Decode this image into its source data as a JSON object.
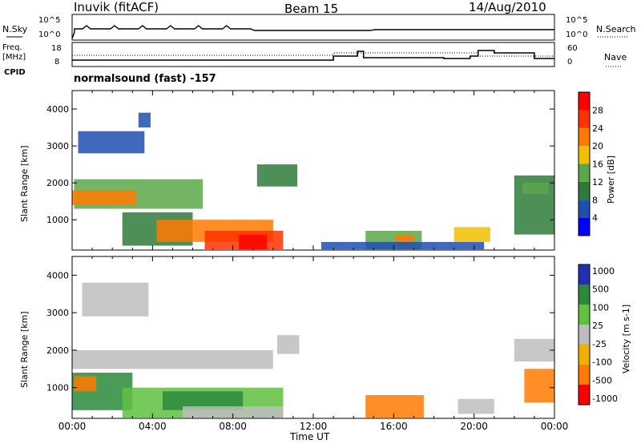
{
  "header": {
    "station": "Inuvik  (fitACF)",
    "beam": "Beam 15",
    "date": "14/Aug/2010"
  },
  "left_labels": {
    "nsky": "N.Sky",
    "freq": "Freq.",
    "freq_unit": "[MHz]",
    "cpid": "CPID",
    "nsky_top": "10^5",
    "nsky_bottom": "10^0",
    "freq_top": "18",
    "freq_bottom": "8"
  },
  "right_labels": {
    "nsearch": "N.Search",
    "nave": "Nave",
    "nsearch_top": "10^5",
    "nsearch_bottom": "10^0",
    "nave_top": "60",
    "nave_bottom": "0"
  },
  "cpid_text": "normalsound (fast) -157",
  "colors": {
    "power_scale": [
      "#0000ff",
      "#1f4fb0",
      "#2f7a3a",
      "#5aa84a",
      "#f0c000",
      "#ff7a00",
      "#ff3300",
      "#ff0000"
    ],
    "velocity_scale": [
      "#2030b0",
      "#2a8a3a",
      "#60c040",
      "#bdbdbd",
      "#f0b000",
      "#ff7a00",
      "#ff0000"
    ]
  },
  "chart_data": [
    {
      "type": "heatmap",
      "name": "power",
      "ylabel": "Slant Range [km]",
      "ylim": [
        180,
        4500
      ],
      "yticks": [
        1000,
        2000,
        3000,
        4000
      ],
      "xticks": [
        "00:00",
        "04:00",
        "08:00",
        "12:00",
        "16:00",
        "20:00",
        "00:00"
      ],
      "colorbar": {
        "label": "Power [dB]",
        "ticks": [
          "4",
          "8",
          "12",
          "16",
          "20",
          "24",
          "28"
        ],
        "range": [
          0,
          30
        ]
      },
      "regions": [
        {
          "t0": 0.1,
          "t1": 6.5,
          "r0": 1300,
          "r1": 2100,
          "level": 12
        },
        {
          "t0": 0.0,
          "t1": 3.2,
          "r0": 1400,
          "r1": 1800,
          "level": 20
        },
        {
          "t0": 2.5,
          "t1": 6.0,
          "r0": 300,
          "r1": 1200,
          "level": 10
        },
        {
          "t0": 4.2,
          "t1": 10.0,
          "r0": 400,
          "r1": 1000,
          "level": 22
        },
        {
          "t0": 6.6,
          "t1": 10.5,
          "r0": 200,
          "r1": 700,
          "level": 27
        },
        {
          "t0": 8.3,
          "t1": 9.7,
          "r0": 200,
          "r1": 600,
          "level": 29
        },
        {
          "t0": 0.3,
          "t1": 3.6,
          "r0": 2800,
          "r1": 3400,
          "level": 6
        },
        {
          "t0": 3.3,
          "t1": 3.9,
          "r0": 3500,
          "r1": 3900,
          "level": 7
        },
        {
          "t0": 9.2,
          "t1": 11.2,
          "r0": 1900,
          "r1": 2500,
          "level": 10
        },
        {
          "t0": 14.6,
          "t1": 17.4,
          "r0": 200,
          "r1": 700,
          "level": 14
        },
        {
          "t0": 16.1,
          "t1": 17.0,
          "r0": 300,
          "r1": 600,
          "level": 23
        },
        {
          "t0": 19.0,
          "t1": 20.8,
          "r0": 400,
          "r1": 800,
          "level": 18
        },
        {
          "t0": 22.0,
          "t1": 24.0,
          "r0": 600,
          "r1": 2200,
          "level": 9
        },
        {
          "t0": 22.4,
          "t1": 23.7,
          "r0": 1700,
          "r1": 2000,
          "level": 13
        },
        {
          "t0": 12.4,
          "t1": 20.5,
          "r0": 200,
          "r1": 400,
          "level": 6
        }
      ]
    },
    {
      "type": "heatmap",
      "name": "velocity",
      "ylabel": "Slant Range [km]",
      "xlabel": "Time UT",
      "ylim": [
        180,
        4500
      ],
      "yticks": [
        1000,
        2000,
        3000,
        4000
      ],
      "xticks": [
        "00:00",
        "04:00",
        "08:00",
        "12:00",
        "16:00",
        "20:00",
        "00:00"
      ],
      "colorbar": {
        "label": "Velocity [m s-1]",
        "ticks": [
          "1000",
          "500",
          "100",
          "25",
          "-25",
          "-100",
          "-500",
          "-1000"
        ],
        "range": [
          -1200,
          1200
        ]
      },
      "regions": [
        {
          "t0": 0.0,
          "t1": 10.0,
          "r0": 1500,
          "r1": 2000,
          "level": 0
        },
        {
          "t0": 0.0,
          "t1": 3.0,
          "r0": 400,
          "r1": 1400,
          "level": 150
        },
        {
          "t0": 0.1,
          "t1": 1.2,
          "r0": 900,
          "r1": 1300,
          "level": -150
        },
        {
          "t0": 2.5,
          "t1": 10.5,
          "r0": 200,
          "r1": 1000,
          "level": 60
        },
        {
          "t0": 4.5,
          "t1": 8.5,
          "r0": 400,
          "r1": 900,
          "level": 450
        },
        {
          "t0": 5.5,
          "t1": 10.5,
          "r0": 200,
          "r1": 500,
          "level": 0
        },
        {
          "t0": 0.5,
          "t1": 3.8,
          "r0": 2900,
          "r1": 3800,
          "level": 0
        },
        {
          "t0": 10.2,
          "t1": 11.3,
          "r0": 1900,
          "r1": 2400,
          "level": 0
        },
        {
          "t0": 14.6,
          "t1": 17.5,
          "r0": 200,
          "r1": 800,
          "level": -300
        },
        {
          "t0": 19.2,
          "t1": 21.0,
          "r0": 300,
          "r1": 700,
          "level": 0
        },
        {
          "t0": 22.0,
          "t1": 24.0,
          "r0": 1700,
          "r1": 2300,
          "level": 0
        },
        {
          "t0": 22.5,
          "t1": 24.0,
          "r0": 600,
          "r1": 1500,
          "level": -150
        }
      ]
    }
  ]
}
